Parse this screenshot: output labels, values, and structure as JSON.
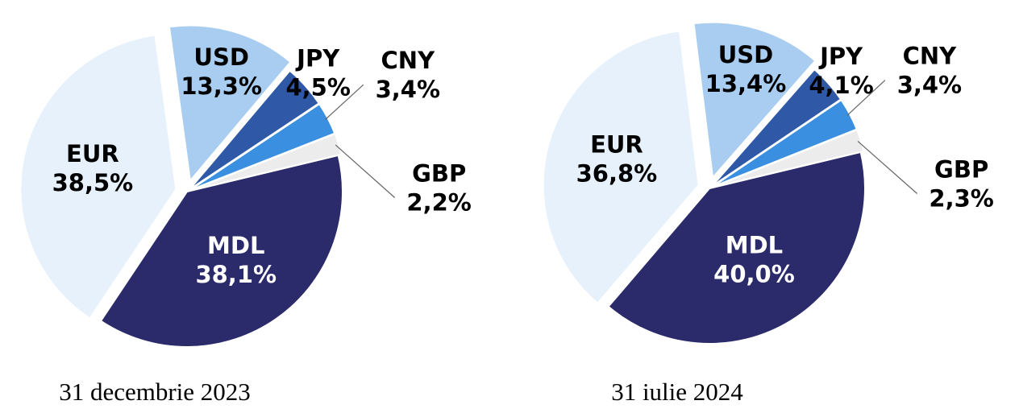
{
  "chart_data": [
    {
      "type": "pie",
      "title": "31 decembrie 2023",
      "categories": [
        "MDL",
        "EUR",
        "USD",
        "JPY",
        "CNY",
        "GBP"
      ],
      "values": [
        38.1,
        38.5,
        13.3,
        4.5,
        3.4,
        2.2
      ],
      "value_labels": [
        "38,1%",
        "38,5%",
        "13,3%",
        "4,5%",
        "3,4%",
        "2,2%"
      ],
      "colors": [
        "#2b2a6b",
        "#e6f1fb",
        "#a9cdf0",
        "#2f59a6",
        "#3a8fe0",
        "#ececec"
      ]
    },
    {
      "type": "pie",
      "title": "31 iulie 2024",
      "categories": [
        "MDL",
        "EUR",
        "USD",
        "JPY",
        "CNY",
        "GBP"
      ],
      "values": [
        40.0,
        36.8,
        13.4,
        4.1,
        3.4,
        2.3
      ],
      "value_labels": [
        "40,0%",
        "36,8%",
        "13,4%",
        "4,1%",
        "3,4%",
        "2,3%"
      ],
      "colors": [
        "#2b2a6b",
        "#e6f1fb",
        "#a9cdf0",
        "#2f59a6",
        "#3a8fe0",
        "#ececec"
      ]
    }
  ]
}
